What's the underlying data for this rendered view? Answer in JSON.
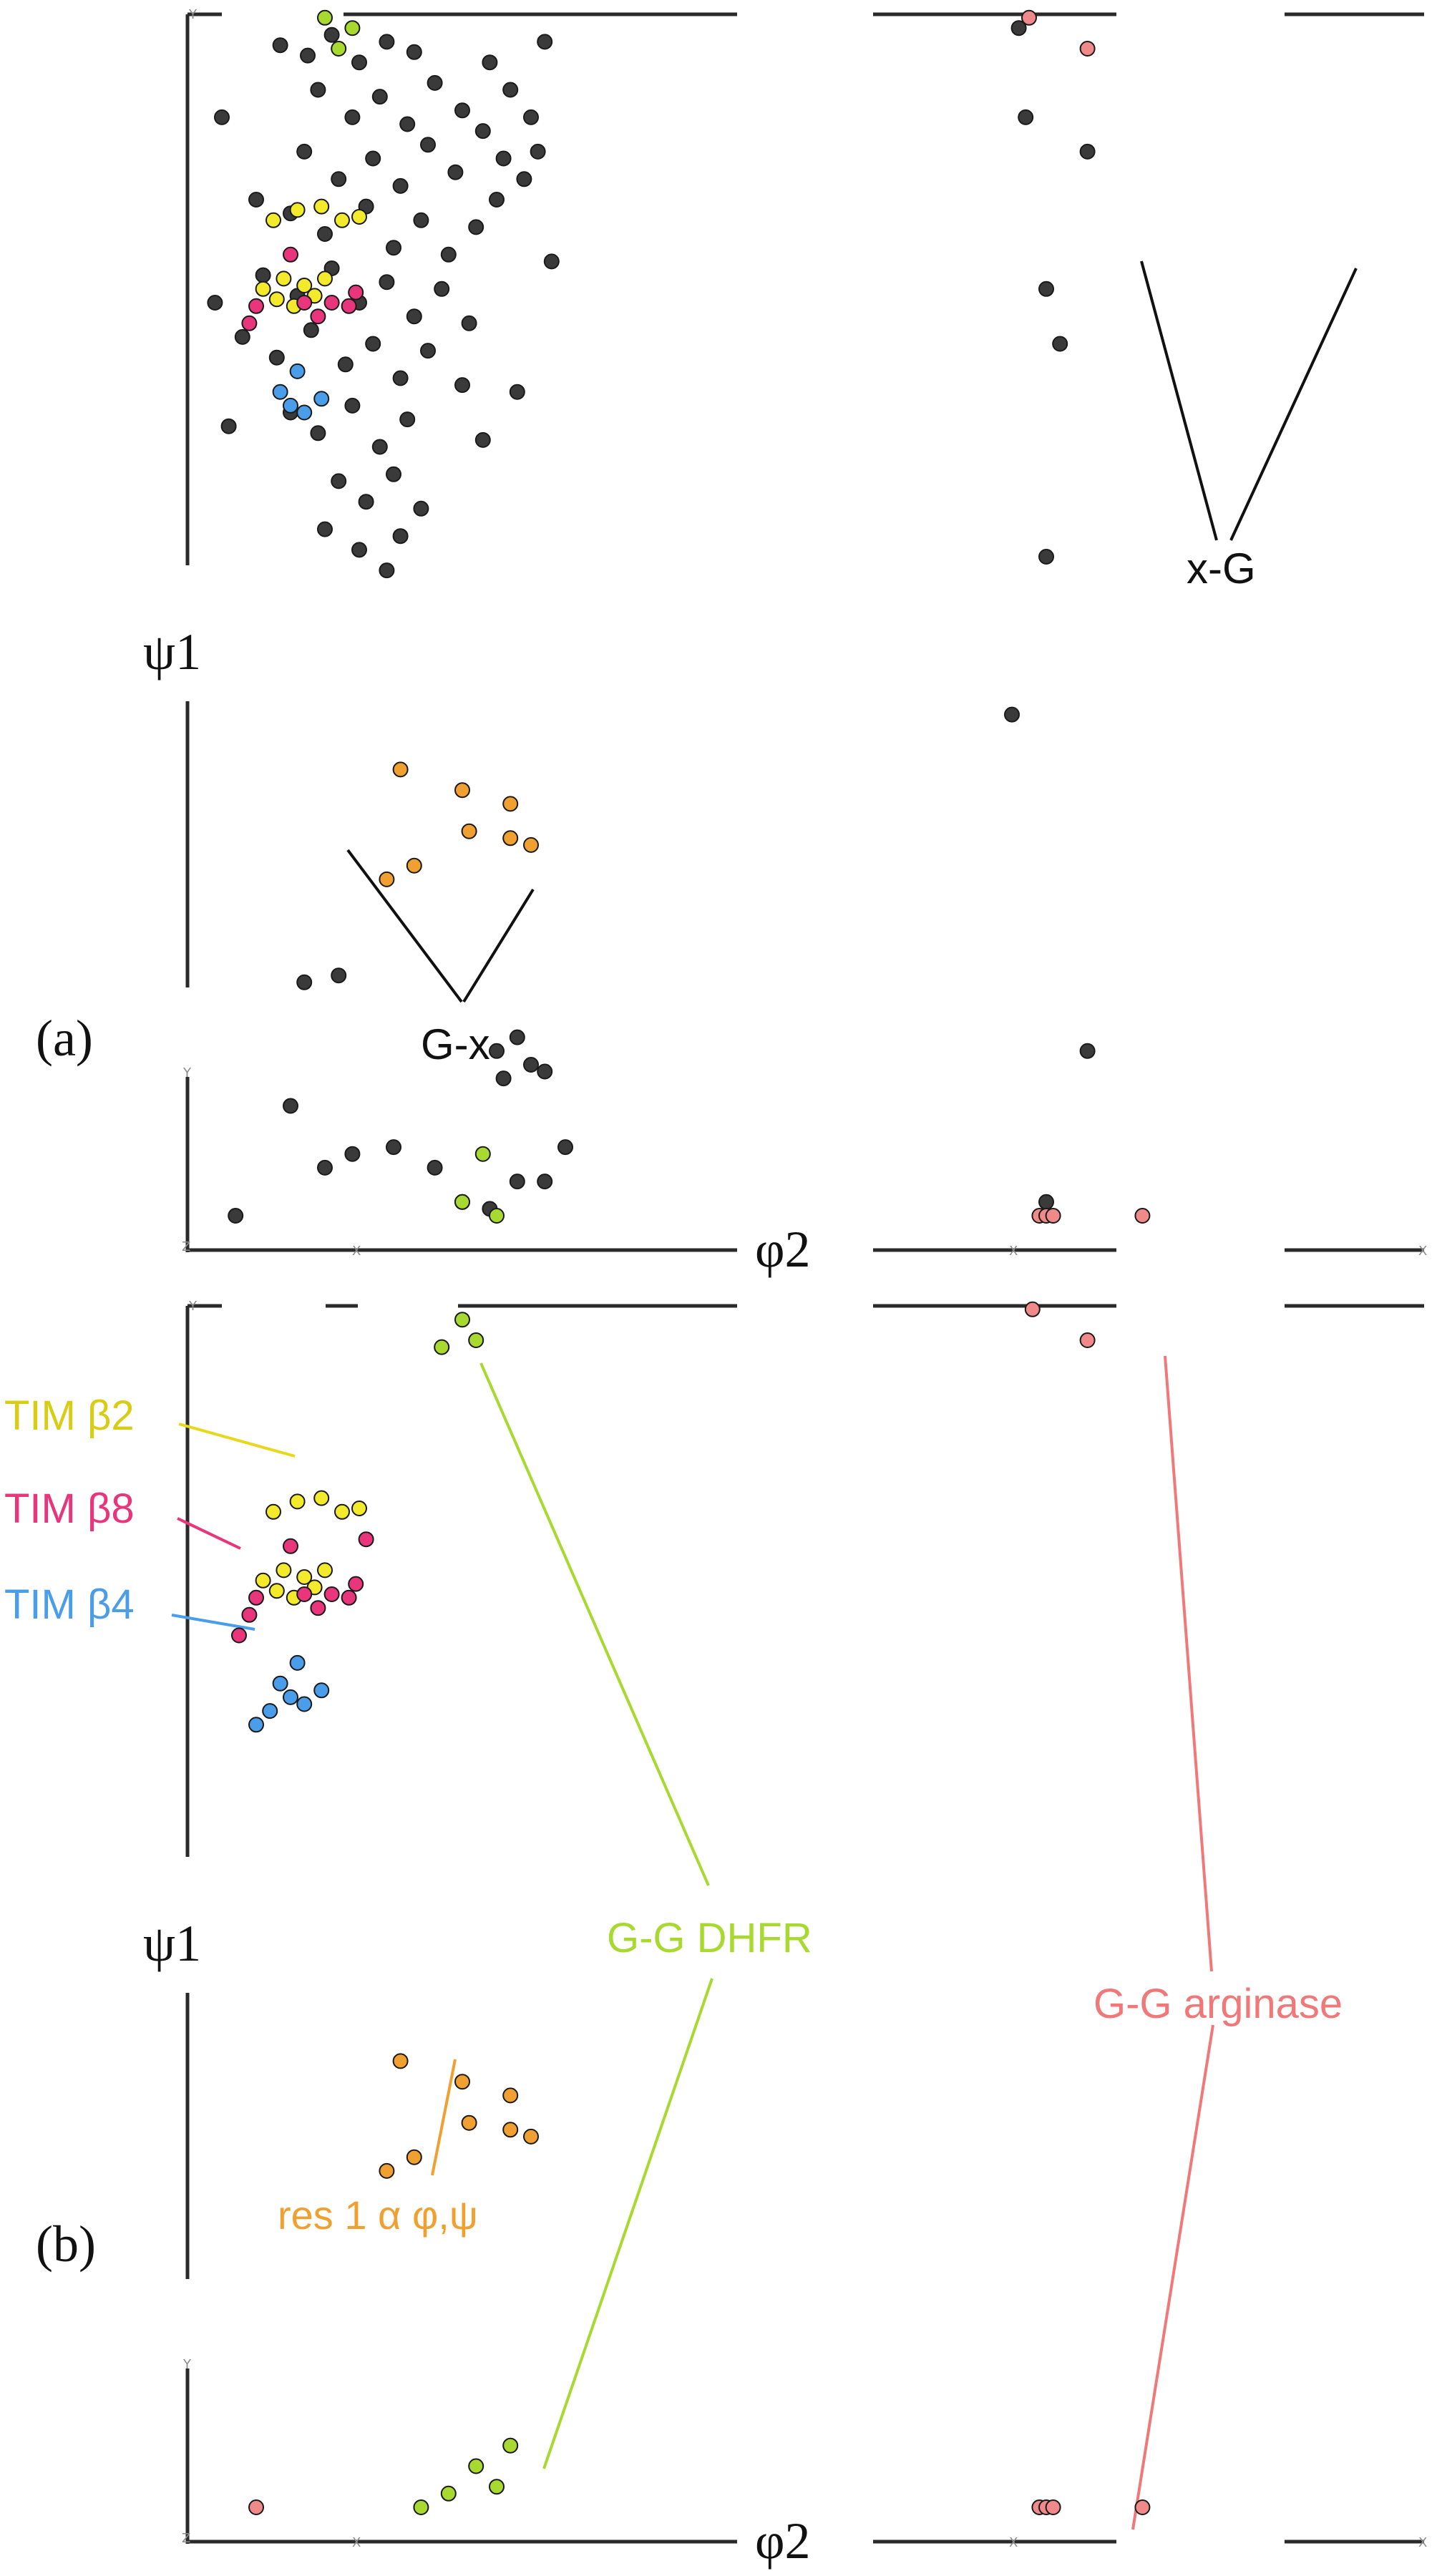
{
  "chart_data": [
    {
      "panel_label": "(a)",
      "type": "scatter",
      "xlabel": "φ2",
      "ylabel": "ψ1",
      "tick_marks": [
        "Y",
        "Y",
        "Z",
        "X",
        "X",
        "X"
      ],
      "annotations": [
        "x-G",
        "G-x"
      ],
      "series": [
        {
          "color": "#3a3a3a",
          "points": [
            [
              -153,
              171
            ],
            [
              -145,
              168
            ],
            [
              -138,
              174
            ],
            [
              -130,
              166
            ],
            [
              -122,
              172
            ],
            [
              -114,
              169
            ],
            [
              -142,
              158
            ],
            [
              -132,
              150
            ],
            [
              -124,
              156
            ],
            [
              -116,
              148
            ],
            [
              -108,
              160
            ],
            [
              -100,
              152
            ],
            [
              -92,
              166
            ],
            [
              -86,
              158
            ],
            [
              -146,
              140
            ],
            [
              -136,
              132
            ],
            [
              -126,
              138
            ],
            [
              -118,
              130
            ],
            [
              -110,
              142
            ],
            [
              -102,
              134
            ],
            [
              -94,
              146
            ],
            [
              -88,
              138
            ],
            [
              -80,
              150
            ],
            [
              -150,
              122
            ],
            [
              -140,
              116
            ],
            [
              -128,
              124
            ],
            [
              -120,
              112
            ],
            [
              -112,
              120
            ],
            [
              -104,
              110
            ],
            [
              -96,
              118
            ],
            [
              -90,
              126
            ],
            [
              -82,
              132
            ],
            [
              -158,
              104
            ],
            [
              -148,
              98
            ],
            [
              -138,
              106
            ],
            [
              -130,
              96
            ],
            [
              -122,
              102
            ],
            [
              -114,
              92
            ],
            [
              -106,
              100
            ],
            [
              -98,
              90
            ],
            [
              -164,
              86
            ],
            [
              -154,
              80
            ],
            [
              -144,
              88
            ],
            [
              -134,
              78
            ],
            [
              -126,
              84
            ],
            [
              -118,
              74
            ],
            [
              -110,
              82
            ],
            [
              -150,
              64
            ],
            [
              -142,
              58
            ],
            [
              -132,
              66
            ],
            [
              -124,
              54
            ],
            [
              -116,
              62
            ],
            [
              -136,
              44
            ],
            [
              -128,
              38
            ],
            [
              -120,
              46
            ],
            [
              -140,
              30
            ],
            [
              -130,
              24
            ],
            [
              -118,
              28
            ],
            [
              -76,
              172
            ],
            [
              -78,
              140
            ],
            [
              -74,
              108
            ],
            [
              -100,
              72
            ],
            [
              -94,
              56
            ],
            [
              -84,
              70
            ],
            [
              -170,
              150
            ],
            [
              -172,
              96
            ],
            [
              -168,
              60
            ],
            [
              -160,
              126
            ],
            [
              -112,
              36
            ],
            [
              -122,
              18
            ],
            [
              62,
              176
            ],
            [
              70,
              -166
            ],
            [
              64,
              150
            ],
            [
              70,
              100
            ],
            [
              74,
              84
            ],
            [
              70,
              22
            ],
            [
              82,
              140
            ],
            [
              60,
              -24
            ],
            [
              82,
              -122
            ],
            [
              -146,
              -102
            ],
            [
              -136,
              -100
            ],
            [
              -90,
              -122
            ],
            [
              -84,
              -118
            ],
            [
              -80,
              -126
            ],
            [
              -88,
              -130
            ],
            [
              -76,
              -128
            ],
            [
              -150,
              -138
            ],
            [
              -100,
              -166
            ],
            [
              -92,
              -168
            ],
            [
              -84,
              -160
            ],
            [
              -132,
              -152
            ],
            [
              -120,
              -150
            ],
            [
              -108,
              -156
            ],
            [
              -76,
              -160
            ],
            [
              -140,
              -156
            ],
            [
              -166,
              -170
            ],
            [
              -70,
              -150
            ]
          ]
        },
        {
          "color": "#a8d930",
          "points": [
            [
              -140,
              179
            ],
            [
              -132,
              176
            ],
            [
              -136,
              170
            ],
            [
              -100,
              -166
            ],
            [
              -94,
              -152
            ],
            [
              -90,
              -170
            ]
          ]
        },
        {
          "color": "#f2ea2a",
          "points": [
            [
              -155,
              120
            ],
            [
              -148,
              123
            ],
            [
              -141,
              124
            ],
            [
              -135,
              120
            ],
            [
              -130,
              121
            ],
            [
              -158,
              100
            ],
            [
              -152,
              103
            ],
            [
              -146,
              101
            ],
            [
              -140,
              103
            ],
            [
              -154,
              97
            ],
            [
              -149,
              95
            ],
            [
              -143,
              98
            ]
          ]
        },
        {
          "color": "#e8357c",
          "points": [
            [
              -162,
              90
            ],
            [
              -160,
              95
            ],
            [
              -150,
              110
            ],
            [
              -146,
              96
            ],
            [
              -142,
              92
            ],
            [
              -138,
              96
            ],
            [
              -133,
              95
            ],
            [
              -131,
              99
            ]
          ]
        },
        {
          "color": "#4a9de8",
          "points": [
            [
              -153,
              70
            ],
            [
              -148,
              76
            ],
            [
              -146,
              64
            ],
            [
              -141,
              68
            ],
            [
              -150,
              66
            ]
          ]
        },
        {
          "color": "#f08a8a",
          "points": [
            [
              65,
              179
            ],
            [
              82,
              170
            ],
            [
              68,
              -170
            ],
            [
              70,
              -170
            ],
            [
              72,
              -170
            ],
            [
              98,
              -170
            ]
          ]
        },
        {
          "color": "#f0a030",
          "points": [
            [
              -118,
              -40
            ],
            [
              -100,
              -46
            ],
            [
              -86,
              -50
            ],
            [
              -98,
              -58
            ],
            [
              -86,
              -60
            ],
            [
              -80,
              -62
            ],
            [
              -122,
              -72
            ],
            [
              -114,
              -68
            ]
          ]
        }
      ]
    },
    {
      "panel_label": "(b)",
      "type": "scatter",
      "xlabel": "φ2",
      "ylabel": "ψ1",
      "tick_marks": [
        "Y",
        "Y",
        "Z",
        "X",
        "X",
        "X"
      ],
      "annotations": [
        "res 1 α φ,ψ"
      ],
      "series": [
        {
          "name": "TIM β2",
          "color": "#f2ea2a",
          "points": [
            [
              -155,
              120
            ],
            [
              -148,
              123
            ],
            [
              -141,
              124
            ],
            [
              -135,
              120
            ],
            [
              -130,
              121
            ],
            [
              -158,
              100
            ],
            [
              -152,
              103
            ],
            [
              -146,
              101
            ],
            [
              -140,
              103
            ],
            [
              -154,
              97
            ],
            [
              -149,
              95
            ],
            [
              -143,
              98
            ]
          ]
        },
        {
          "name": "TIM β8",
          "color": "#e8357c",
          "points": [
            [
              -162,
              90
            ],
            [
              -160,
              95
            ],
            [
              -150,
              110
            ],
            [
              -146,
              96
            ],
            [
              -142,
              92
            ],
            [
              -138,
              96
            ],
            [
              -133,
              95
            ],
            [
              -131,
              99
            ],
            [
              -165,
              84
            ],
            [
              -128,
              112
            ]
          ]
        },
        {
          "name": "TIM β4",
          "color": "#4a9de8",
          "points": [
            [
              -153,
              70
            ],
            [
              -148,
              76
            ],
            [
              -146,
              64
            ],
            [
              -141,
              68
            ],
            [
              -150,
              66
            ],
            [
              -156,
              62
            ],
            [
              -160,
              58
            ]
          ]
        },
        {
          "name": "G-G DHFR",
          "color": "#a8d930",
          "points": [
            [
              -100,
              176
            ],
            [
              -106,
              168
            ],
            [
              -96,
              170
            ],
            [
              -104,
              -166
            ],
            [
              -96,
              -158
            ],
            [
              -90,
              -164
            ],
            [
              -86,
              -152
            ],
            [
              -112,
              -170
            ]
          ]
        },
        {
          "name": "G-G arginase",
          "color": "#f08a8a",
          "points": [
            [
              66,
              179
            ],
            [
              82,
              170
            ],
            [
              -160,
              -170
            ],
            [
              68,
              -170
            ],
            [
              70,
              -170
            ],
            [
              72,
              -170
            ],
            [
              98,
              -170
            ]
          ]
        },
        {
          "color": "#f0a030",
          "points": [
            [
              -118,
              -40
            ],
            [
              -100,
              -46
            ],
            [
              -86,
              -50
            ],
            [
              -98,
              -58
            ],
            [
              -86,
              -60
            ],
            [
              -80,
              -62
            ],
            [
              -122,
              -72
            ],
            [
              -114,
              -68
            ]
          ]
        }
      ]
    }
  ]
}
